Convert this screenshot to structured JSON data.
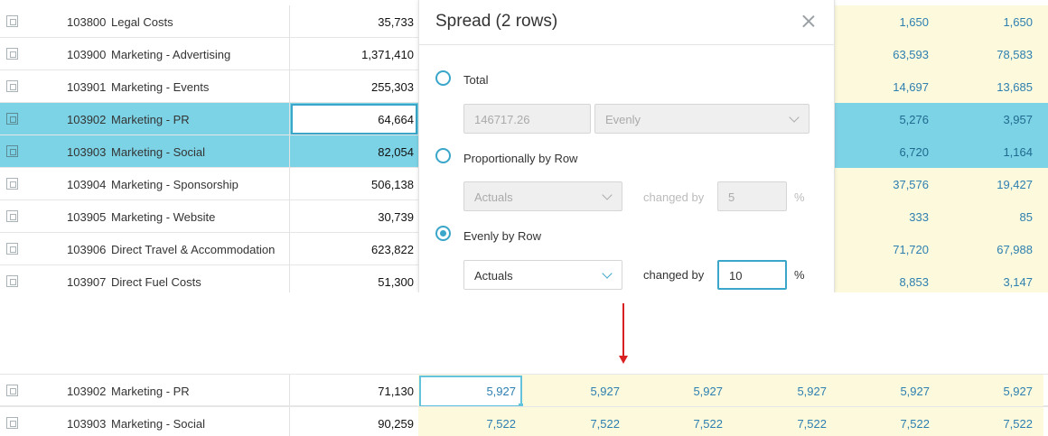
{
  "top_rows": [
    {
      "code": "103800",
      "account": "Legal Costs",
      "total": "35,733",
      "c1": "1,650",
      "c2": "1,650",
      "selected": false
    },
    {
      "code": "103900",
      "account": "Marketing - Advertising",
      "total": "1,371,410",
      "c1": "63,593",
      "c2": "78,583",
      "selected": false
    },
    {
      "code": "103901",
      "account": "Marketing - Events",
      "total": "255,303",
      "c1": "14,697",
      "c2": "13,685",
      "selected": false
    },
    {
      "code": "103902",
      "account": "Marketing - PR",
      "total": "64,664",
      "c1": "5,276",
      "c2": "3,957",
      "selected": true
    },
    {
      "code": "103903",
      "account": "Marketing - Social",
      "total": "82,054",
      "c1": "6,720",
      "c2": "1,164",
      "selected": true
    },
    {
      "code": "103904",
      "account": "Marketing - Sponsorship",
      "total": "506,138",
      "c1": "37,576",
      "c2": "19,427",
      "selected": false
    },
    {
      "code": "103905",
      "account": "Marketing - Website",
      "total": "30,739",
      "c1": "333",
      "c2": "85",
      "selected": false
    },
    {
      "code": "103906",
      "account": "Direct Travel & Accommodation",
      "total": "623,822",
      "c1": "71,720",
      "c2": "67,988",
      "selected": false
    },
    {
      "code": "103907",
      "account": "Direct Fuel Costs",
      "total": "51,300",
      "c1": "8,853",
      "c2": "3,147",
      "selected": false
    }
  ],
  "spread_panel": {
    "title": "Spread (2 rows)",
    "option_total": "Total",
    "total_value": "146717.26",
    "total_method": "Evenly",
    "option_proportional": "Proportionally by Row",
    "proportional_basis": "Actuals",
    "proportional_changed_by_label": "changed by",
    "proportional_changed_by_value": "5",
    "proportional_percent": "%",
    "option_evenly": "Evenly by Row",
    "evenly_basis": "Actuals",
    "evenly_changed_by_label": "changed by",
    "evenly_changed_by_value": "10",
    "evenly_percent": "%",
    "selected_option": "Evenly by Row"
  },
  "bottom_rows": [
    {
      "code": "103902",
      "account": "Marketing - PR",
      "total": "71,130",
      "months": [
        "5,927",
        "5,927",
        "5,927",
        "5,927",
        "5,927",
        "5,927"
      ]
    },
    {
      "code": "103903",
      "account": "Marketing - Social",
      "total": "90,259",
      "months": [
        "7,522",
        "7,522",
        "7,522",
        "7,522",
        "7,522",
        "7,522"
      ]
    }
  ],
  "colors": {
    "selection": "#7dd3e6",
    "forecast_bg": "#fdf9dd",
    "accent": "#3aa6c9",
    "value_text": "#2d7fb0",
    "arrow": "#d92020"
  }
}
